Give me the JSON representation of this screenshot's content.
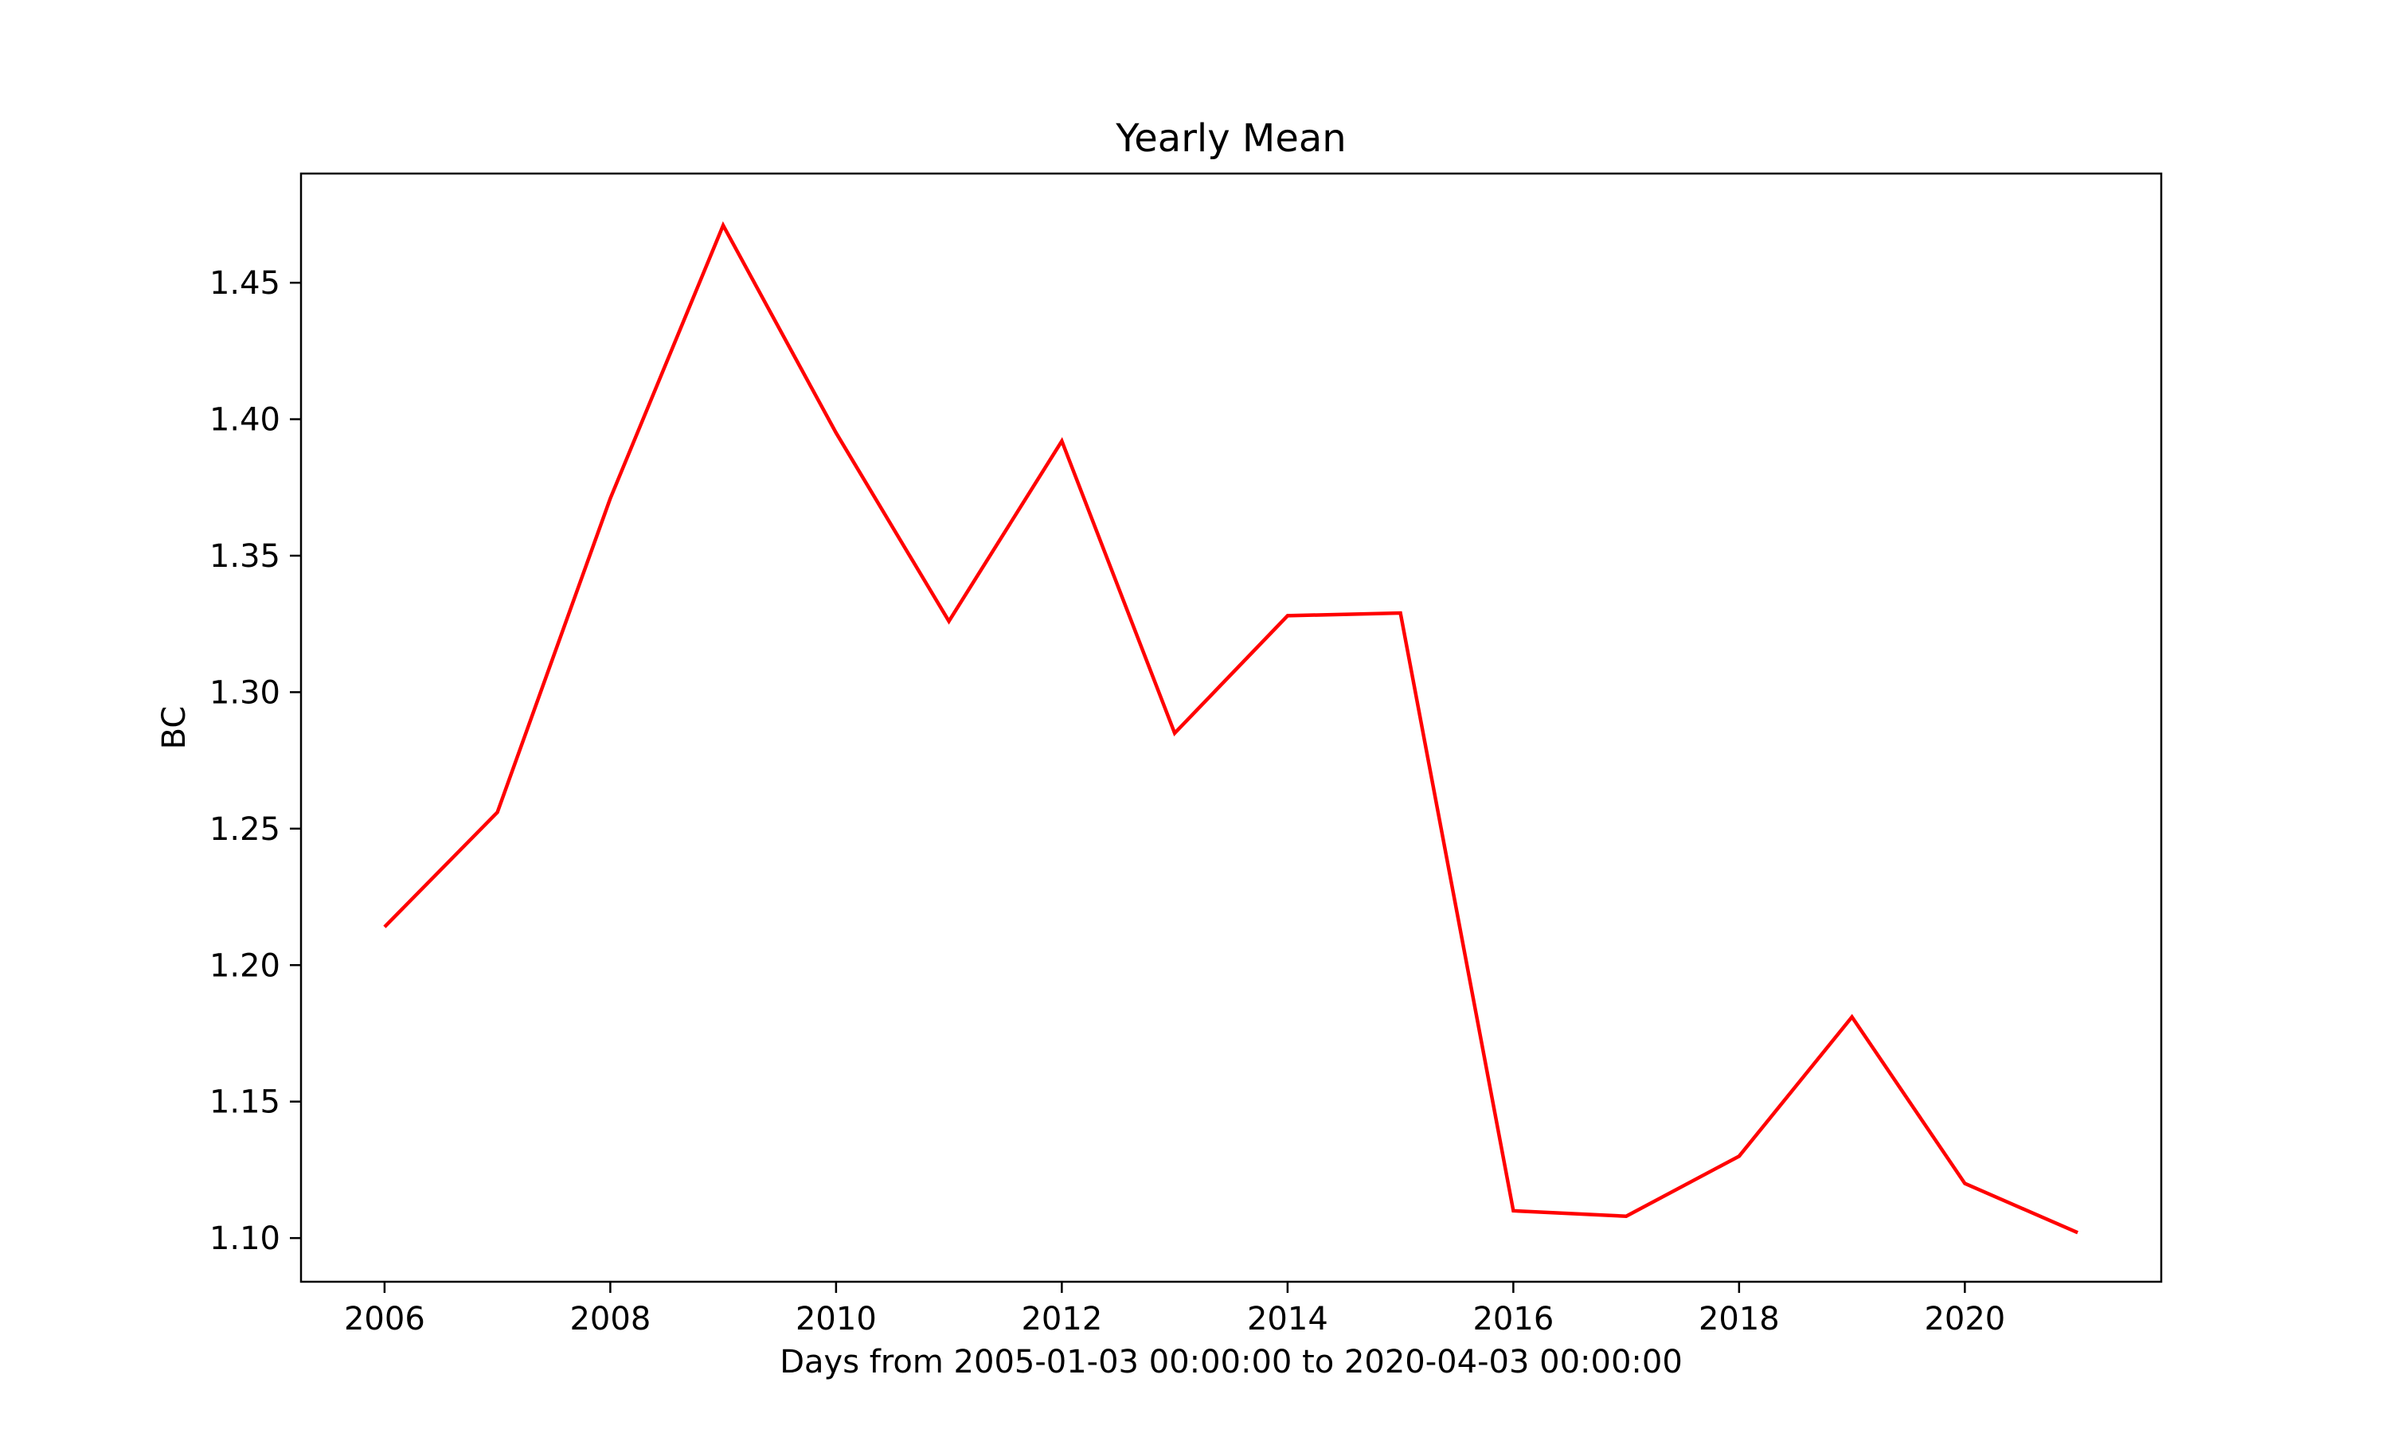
{
  "chart_data": {
    "type": "line",
    "title": "Yearly Mean",
    "xlabel": "Days from 2005-01-03 00:00:00 to 2020-04-03 00:00:00",
    "ylabel": "BC",
    "x": [
      2006,
      2007,
      2008,
      2009,
      2010,
      2011,
      2012,
      2013,
      2014,
      2015,
      2016,
      2017,
      2018,
      2019,
      2020,
      2021
    ],
    "series": [
      {
        "color": "#ff0000",
        "values": [
          1.214,
          1.256,
          1.371,
          1.471,
          1.395,
          1.326,
          1.392,
          1.285,
          1.328,
          1.329,
          1.11,
          1.108,
          1.13,
          1.181,
          1.12,
          1.102
        ]
      }
    ],
    "xlim": [
      2005.26,
      2021.74
    ],
    "ylim": [
      1.084,
      1.49
    ],
    "x_ticks": [
      2006,
      2008,
      2010,
      2012,
      2014,
      2016,
      2018,
      2020
    ],
    "y_ticks": [
      1.1,
      1.15,
      1.2,
      1.25,
      1.3,
      1.35,
      1.4,
      1.45
    ],
    "y_tick_labels": [
      "1.10",
      "1.15",
      "1.20",
      "1.25",
      "1.30",
      "1.35",
      "1.40",
      "1.45"
    ],
    "grid": false,
    "legend": "none"
  }
}
